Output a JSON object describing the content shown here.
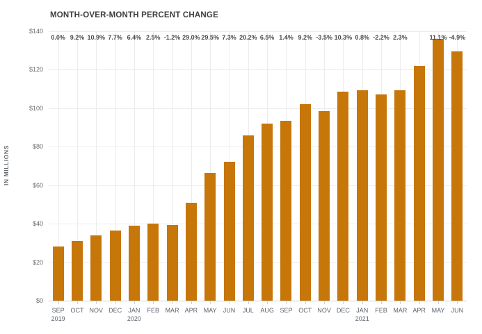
{
  "title": "MONTH-OVER-MONTH PERCENT CHANGE",
  "chart_data": {
    "type": "bar",
    "title": "MONTH-OVER-MONTH PERCENT CHANGE",
    "ylabel": "IN MILLIONS",
    "ylim": [
      0,
      140
    ],
    "y_tick_values": [
      0,
      20,
      40,
      60,
      80,
      100,
      120,
      140
    ],
    "y_tick_labels": [
      "$0",
      "$20",
      "$40",
      "$60",
      "$80",
      "$100",
      "$120",
      "$140"
    ],
    "grid": "on",
    "legend": "none",
    "bar_color": "#c7760a",
    "categories": [
      {
        "month": "SEP",
        "year": "2019"
      },
      {
        "month": "OCT",
        "year": ""
      },
      {
        "month": "NOV",
        "year": ""
      },
      {
        "month": "DEC",
        "year": ""
      },
      {
        "month": "JAN",
        "year": "2020"
      },
      {
        "month": "FEB",
        "year": ""
      },
      {
        "month": "MAR",
        "year": ""
      },
      {
        "month": "APR",
        "year": ""
      },
      {
        "month": "MAY",
        "year": ""
      },
      {
        "month": "JUN",
        "year": ""
      },
      {
        "month": "JUL",
        "year": ""
      },
      {
        "month": "AUG",
        "year": ""
      },
      {
        "month": "SEP",
        "year": ""
      },
      {
        "month": "OCT",
        "year": ""
      },
      {
        "month": "NOV",
        "year": ""
      },
      {
        "month": "DEC",
        "year": ""
      },
      {
        "month": "JAN",
        "year": "2021"
      },
      {
        "month": "FEB",
        "year": ""
      },
      {
        "month": "MAR",
        "year": ""
      },
      {
        "month": "APR",
        "year": ""
      },
      {
        "month": "MAY",
        "year": ""
      },
      {
        "month": "JUN",
        "year": ""
      }
    ],
    "values": [
      28,
      31,
      34,
      36.5,
      39,
      40,
      39.5,
      51,
      66.5,
      72,
      86,
      92,
      93.5,
      102,
      98.5,
      108.5,
      109.5,
      107,
      109.5,
      122,
      136,
      129.5
    ],
    "pct_change_labels": [
      "0.0%",
      "9.2%",
      "10.9%",
      "7.7%",
      "6.4%",
      "2.5%",
      "-1.2%",
      "29.0%",
      "29.5%",
      "7.3%",
      "20.2%",
      "6.5%",
      "1.4%",
      "9.2%",
      "-3.5%",
      "10.3%",
      "0.8%",
      "-2.2%",
      "2.3%",
      "",
      "11.1%",
      "-4.9%"
    ]
  },
  "colors": {
    "bar": "#c7760a",
    "grid": "#ececec",
    "axis_line": "#c9d1db",
    "title_text": "#3c3c3c",
    "pct_text": "#474747",
    "tick_text": "#696969",
    "month_text": "#5a626c",
    "background": "#ffffff"
  }
}
